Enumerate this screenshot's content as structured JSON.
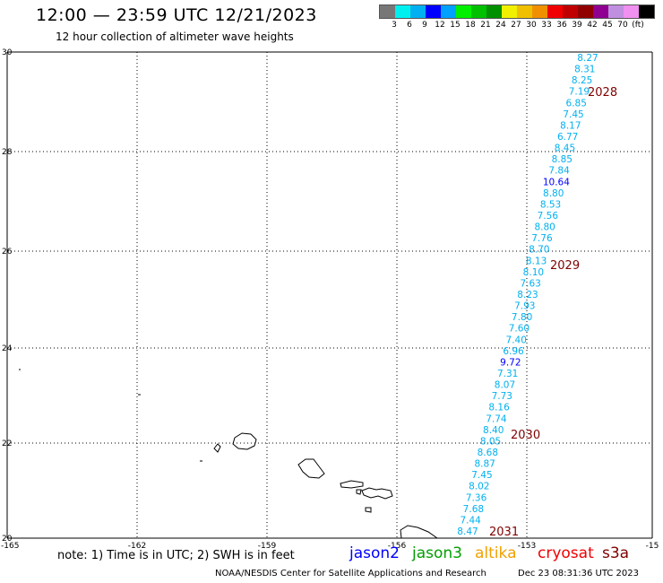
{
  "title": "12:00 — 23:59 UTC 12/21/2023",
  "subtitle": "12 hour collection of altimeter wave heights",
  "legend": {
    "colors": [
      "#777777",
      "#00f0f0",
      "#00b0f0",
      "#0000ff",
      "#00a0ff",
      "#00f000",
      "#00c000",
      "#009000",
      "#f0f000",
      "#f0c000",
      "#f09000",
      "#f00000",
      "#c00000",
      "#900000",
      "#900090",
      "#c090e0",
      "#f090f0",
      "#000000"
    ],
    "labels": [
      "3",
      "6",
      "9",
      "12",
      "15",
      "18",
      "21",
      "24",
      "27",
      "30",
      "33",
      "36",
      "39",
      "42",
      "45",
      "70",
      "(ft)"
    ]
  },
  "axes": {
    "y_ticks": [
      "30",
      "28",
      "26",
      "24",
      "22",
      "20"
    ],
    "x_ticks": [
      "-165",
      "-162",
      "-159",
      "-156",
      "-153",
      "-15"
    ]
  },
  "points": [
    {
      "v": "8.27",
      "c": "#00b0f0"
    },
    {
      "v": "8.31",
      "c": "#00b0f0"
    },
    {
      "v": "8.25",
      "c": "#00b0f0"
    },
    {
      "v": "7.19",
      "c": "#00b0f0"
    },
    {
      "v": "6.85",
      "c": "#00b0f0"
    },
    {
      "v": "7.45",
      "c": "#00b0f0"
    },
    {
      "v": "8.17",
      "c": "#00b0f0"
    },
    {
      "v": "6.77",
      "c": "#00b0f0"
    },
    {
      "v": "8.45",
      "c": "#00b0f0"
    },
    {
      "v": "8.85",
      "c": "#00b0f0"
    },
    {
      "v": "7.84",
      "c": "#00b0f0"
    },
    {
      "v": "10.64",
      "c": "#0000ff"
    },
    {
      "v": "8.80",
      "c": "#00b0f0"
    },
    {
      "v": "8.53",
      "c": "#00b0f0"
    },
    {
      "v": "7.56",
      "c": "#00b0f0"
    },
    {
      "v": "8.80",
      "c": "#00b0f0"
    },
    {
      "v": "7.76",
      "c": "#00b0f0"
    },
    {
      "v": "8.70",
      "c": "#00b0f0"
    },
    {
      "v": "8.13",
      "c": "#00b0f0"
    },
    {
      "v": "8.10",
      "c": "#00b0f0"
    },
    {
      "v": "7.63",
      "c": "#00b0f0"
    },
    {
      "v": "8.23",
      "c": "#00b0f0"
    },
    {
      "v": "7.93",
      "c": "#00b0f0"
    },
    {
      "v": "7.80",
      "c": "#00b0f0"
    },
    {
      "v": "7.60",
      "c": "#00b0f0"
    },
    {
      "v": "7.40",
      "c": "#00b0f0"
    },
    {
      "v": "6.96",
      "c": "#00b0f0"
    },
    {
      "v": "9.72",
      "c": "#0000ff"
    },
    {
      "v": "7.31",
      "c": "#00b0f0"
    },
    {
      "v": "8.07",
      "c": "#00b0f0"
    },
    {
      "v": "7.73",
      "c": "#00b0f0"
    },
    {
      "v": "8.16",
      "c": "#00b0f0"
    },
    {
      "v": "7.74",
      "c": "#00b0f0"
    },
    {
      "v": "8.40",
      "c": "#00b0f0"
    },
    {
      "v": "8.05",
      "c": "#00b0f0"
    },
    {
      "v": "8.68",
      "c": "#00b0f0"
    },
    {
      "v": "8.87",
      "c": "#00b0f0"
    },
    {
      "v": "7.45",
      "c": "#00b0f0"
    },
    {
      "v": "8.02",
      "c": "#00b0f0"
    },
    {
      "v": "7.36",
      "c": "#00b0f0"
    },
    {
      "v": "7.68",
      "c": "#00b0f0"
    },
    {
      "v": "7.44",
      "c": "#00b0f0"
    },
    {
      "v": "8.47",
      "c": "#00b0f0"
    }
  ],
  "passes": [
    "2028",
    "2029",
    "2030",
    "2031"
  ],
  "pass_color": "#800000",
  "footer": {
    "note": "note: 1) Time is in UTC; 2) SWH is in feet",
    "satellites": [
      {
        "name": "jason2",
        "color": "#0000ff"
      },
      {
        "name": "jason3",
        "color": "#00a000"
      },
      {
        "name": "altika",
        "color": "#f0a000"
      },
      {
        "name": "cryosat",
        "color": "#f00000"
      },
      {
        "name": "s3a",
        "color": "#800000"
      }
    ],
    "credit": "NOAA/NESDIS Center for Satellite Applications and Research",
    "timestamp": "Dec 23 08:31:36 UTC 2023"
  }
}
